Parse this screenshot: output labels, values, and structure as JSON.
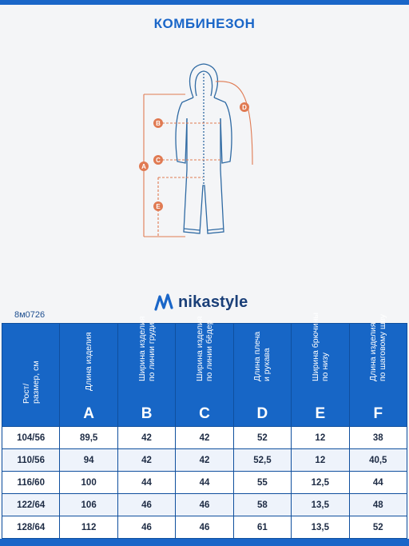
{
  "header": {
    "title": "КОМБИНЕЗОН"
  },
  "diagram": {
    "markers": [
      "A",
      "B",
      "C",
      "D",
      "E"
    ],
    "colors": {
      "outline": "#2f6aa3",
      "measure": "#e07a52"
    }
  },
  "article_code": "8м0726",
  "brand": {
    "name": "nikastyle",
    "logo_icon": "nikastyle-wave-logo"
  },
  "table": {
    "columns": [
      {
        "label": "Рост/\nразмер, см",
        "letter": ""
      },
      {
        "label": "Длина изделия",
        "letter": "A"
      },
      {
        "label": "Ширина изделия\nпо линии груди",
        "letter": "B"
      },
      {
        "label": "Ширина изделия\nпо линии бёдер",
        "letter": "C"
      },
      {
        "label": "Длина плеча\nи рукава",
        "letter": "D"
      },
      {
        "label": "Ширина брючины\nпо низу",
        "letter": "E"
      },
      {
        "label": "Длина изделия\nпо шаговому шву",
        "letter": "F"
      }
    ],
    "rows": [
      [
        "104/56",
        "89,5",
        "42",
        "42",
        "52",
        "12",
        "38"
      ],
      [
        "110/56",
        "94",
        "42",
        "42",
        "52,5",
        "12",
        "40,5"
      ],
      [
        "116/60",
        "100",
        "44",
        "44",
        "55",
        "12,5",
        "44"
      ],
      [
        "122/64",
        "106",
        "46",
        "46",
        "58",
        "13,5",
        "48"
      ],
      [
        "128/64",
        "112",
        "46",
        "46",
        "61",
        "13,5",
        "52"
      ]
    ]
  },
  "colors": {
    "accent": "#1a66c8",
    "header_bg": "#1766c6",
    "text_dark": "#1d2b44"
  }
}
